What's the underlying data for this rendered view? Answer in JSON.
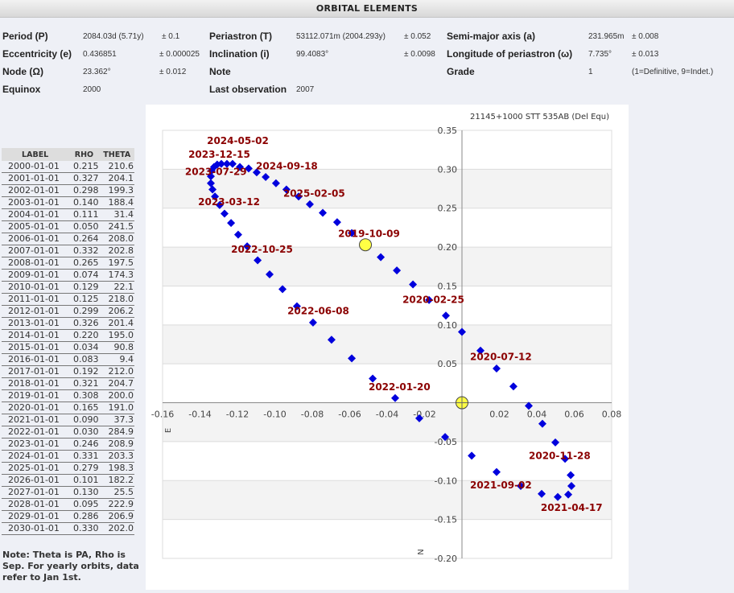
{
  "header": {
    "title": "ORBITAL ELEMENTS"
  },
  "elements": {
    "period": {
      "label": "Period (P)",
      "value": "2084.03d (5.71y)",
      "err": "± 0.1"
    },
    "periastron": {
      "label": "Periastron (T)",
      "value": "53112.071m (2004.293y)",
      "err": "± 0.052"
    },
    "semimajor": {
      "label": "Semi-major axis (a)",
      "value": "231.965m",
      "err": "± 0.008"
    },
    "eccentricity": {
      "label": "Eccentricity (e)",
      "value": "0.436851",
      "err": "± 0.000025"
    },
    "inclination": {
      "label": "Inclination (i)",
      "value": "99.4083°",
      "err": "± 0.0098"
    },
    "longitude": {
      "label": "Longitude of periastron (ω)",
      "value": "7.735°",
      "err": "± 0.013"
    },
    "node": {
      "label": "Node (Ω)",
      "value": "23.362°",
      "err": "± 0.012"
    },
    "note": {
      "label": "Note",
      "value": ""
    },
    "grade": {
      "label": "Grade",
      "value": "1",
      "err": "(1=Definitive, 9=Indet.)"
    },
    "equinox": {
      "label": "Equinox",
      "value": "2000"
    },
    "last_obs": {
      "label": "Last observation",
      "value": "2007"
    }
  },
  "ephemeris": {
    "headers": [
      "LABEL",
      "RHO",
      "THETA"
    ],
    "rows": [
      [
        "2000-01-01",
        "0.215",
        "210.6"
      ],
      [
        "2001-01-01",
        "0.327",
        "204.1"
      ],
      [
        "2002-01-01",
        "0.298",
        "199.3"
      ],
      [
        "2003-01-01",
        "0.140",
        "188.4"
      ],
      [
        "2004-01-01",
        "0.111",
        "31.4"
      ],
      [
        "2005-01-01",
        "0.050",
        "241.5"
      ],
      [
        "2006-01-01",
        "0.264",
        "208.0"
      ],
      [
        "2007-01-01",
        "0.332",
        "202.8"
      ],
      [
        "2008-01-01",
        "0.265",
        "197.5"
      ],
      [
        "2009-01-01",
        "0.074",
        "174.3"
      ],
      [
        "2010-01-01",
        "0.129",
        "22.1"
      ],
      [
        "2011-01-01",
        "0.125",
        "218.0"
      ],
      [
        "2012-01-01",
        "0.299",
        "206.2"
      ],
      [
        "2013-01-01",
        "0.326",
        "201.4"
      ],
      [
        "2014-01-01",
        "0.220",
        "195.0"
      ],
      [
        "2015-01-01",
        "0.034",
        "90.8"
      ],
      [
        "2016-01-01",
        "0.083",
        "9.4"
      ],
      [
        "2017-01-01",
        "0.192",
        "212.0"
      ],
      [
        "2018-01-01",
        "0.321",
        "204.7"
      ],
      [
        "2019-01-01",
        "0.308",
        "200.0"
      ],
      [
        "2020-01-01",
        "0.165",
        "191.0"
      ],
      [
        "2021-01-01",
        "0.090",
        "37.3"
      ],
      [
        "2022-01-01",
        "0.030",
        "284.9"
      ],
      [
        "2023-01-01",
        "0.246",
        "208.9"
      ],
      [
        "2024-01-01",
        "0.331",
        "203.3"
      ],
      [
        "2025-01-01",
        "0.279",
        "198.3"
      ],
      [
        "2026-01-01",
        "0.101",
        "182.2"
      ],
      [
        "2027-01-01",
        "0.130",
        "25.5"
      ],
      [
        "2028-01-01",
        "0.095",
        "222.9"
      ],
      [
        "2029-01-01",
        "0.286",
        "206.9"
      ],
      [
        "2030-01-01",
        "0.330",
        "202.0"
      ]
    ],
    "note": "Note: Theta is PA, Rho is Sep. For yearly orbits, data refer to Jan 1st."
  },
  "chart_data": {
    "type": "scatter",
    "title": "21145+1000 STT 535AB (Del Equ)",
    "xlim": [
      -0.16,
      0.08
    ],
    "ylim": [
      -0.2,
      0.35
    ],
    "xticks": [
      "-0.16",
      "-0.14",
      "-0.12",
      "-0.10",
      "-0.08",
      "-0.06",
      "-0.04",
      "-0.02",
      "0.02",
      "0.04",
      "0.06",
      "0.08"
    ],
    "xtick_values": [
      -0.16,
      -0.14,
      -0.12,
      -0.1,
      -0.08,
      -0.06,
      -0.04,
      -0.02,
      0.02,
      0.04,
      0.06,
      0.08
    ],
    "yticks": [
      "0.35",
      "0.30",
      "0.25",
      "0.20",
      "0.15",
      "0.10",
      "0.05",
      "-0.05",
      "-0.10",
      "-0.15",
      "-0.20"
    ],
    "ytick_values": [
      0.35,
      0.3,
      0.25,
      0.2,
      0.15,
      0.1,
      0.05,
      -0.05,
      -0.1,
      -0.15,
      -0.2
    ],
    "xlabel": "E",
    "ylabel": "N",
    "grid": true,
    "colors": {
      "point": "#0000dd",
      "label": "#8b0000",
      "marker": "#ffff44",
      "band": "#f3f3f3"
    },
    "orbit_points": [
      [
        0.0,
        0.091
      ],
      [
        0.0099,
        0.067
      ],
      [
        0.0185,
        0.044
      ],
      [
        0.0275,
        0.021
      ],
      [
        0.0357,
        -0.004
      ],
      [
        0.043,
        -0.027
      ],
      [
        0.0499,
        -0.051
      ],
      [
        0.0551,
        -0.072
      ],
      [
        0.0581,
        -0.093
      ],
      [
        0.0585,
        -0.107
      ],
      [
        0.0568,
        -0.118
      ],
      [
        0.0512,
        -0.121
      ],
      [
        0.0426,
        -0.117
      ],
      [
        0.0314,
        -0.107
      ],
      [
        0.0185,
        -0.089
      ],
      [
        0.0052,
        -0.068
      ],
      [
        -0.009,
        -0.044
      ],
      [
        -0.0228,
        -0.02
      ],
      [
        -0.0357,
        0.006
      ],
      [
        -0.0477,
        0.031
      ],
      [
        -0.0589,
        0.057
      ],
      [
        -0.0697,
        0.081
      ],
      [
        -0.0796,
        0.103
      ],
      [
        -0.0882,
        0.124
      ],
      [
        -0.0959,
        0.146
      ],
      [
        -0.1028,
        0.165
      ],
      [
        -0.1092,
        0.183
      ],
      [
        -0.1148,
        0.201
      ],
      [
        -0.1196,
        0.216
      ],
      [
        -0.1234,
        0.231
      ],
      [
        -0.1269,
        0.243
      ],
      [
        -0.1295,
        0.254
      ],
      [
        -0.132,
        0.265
      ],
      [
        -0.1333,
        0.274
      ],
      [
        -0.1342,
        0.282
      ],
      [
        -0.1342,
        0.291
      ],
      [
        -0.1338,
        0.298
      ],
      [
        -0.1325,
        0.303
      ],
      [
        -0.1308,
        0.306
      ],
      [
        -0.1286,
        0.307
      ],
      [
        -0.1256,
        0.307
      ],
      [
        -0.1226,
        0.307
      ],
      [
        -0.1187,
        0.303
      ],
      [
        -0.114,
        0.301
      ],
      [
        -0.1097,
        0.296
      ],
      [
        -0.1049,
        0.29
      ],
      [
        -0.0994,
        0.282
      ],
      [
        -0.0938,
        0.274
      ],
      [
        -0.0873,
        0.265
      ],
      [
        -0.0813,
        0.255
      ],
      [
        -0.0744,
        0.244
      ],
      [
        -0.0667,
        0.232
      ],
      [
        -0.0589,
        0.218
      ],
      [
        -0.0434,
        0.187
      ],
      [
        -0.0348,
        0.17
      ],
      [
        -0.0262,
        0.152
      ],
      [
        -0.0176,
        0.132
      ],
      [
        -0.0086,
        0.112
      ]
    ],
    "markers": [
      [
        0,
        0
      ],
      [
        -0.0516,
        0.203
      ]
    ],
    "annotations": [
      {
        "text": "2023-12-15",
        "x": -0.1462,
        "y": 0.318
      },
      {
        "text": "2024-05-02",
        "x": -0.1363,
        "y": 0.322
      },
      {
        "text": "2023-07-29",
        "x": -0.148,
        "y": 0.298
      },
      {
        "text": "2024-09-18",
        "x": -0.1187,
        "y": 0.305
      },
      {
        "text": "2023-03-12",
        "x": -0.141,
        "y": 0.259
      },
      {
        "text": "2025-02-05",
        "x": -0.0955,
        "y": 0.27
      },
      {
        "text": "2019-10-09",
        "x": -0.0662,
        "y": 0.218
      },
      {
        "text": "2022-10-25",
        "x": -0.1234,
        "y": 0.198
      },
      {
        "text": "2020-02-25",
        "x": -0.0318,
        "y": 0.148
      },
      {
        "text": "2022-06-08",
        "x": -0.0933,
        "y": 0.119
      },
      {
        "text": "2020-07-12",
        "x": 0.0043,
        "y": 0.06
      },
      {
        "text": "2022-01-20",
        "x": -0.0499,
        "y": 0.021
      },
      {
        "text": "2020-11-28",
        "x": 0.0357,
        "y": -0.067
      },
      {
        "text": "2021-09-02",
        "x": 0.0043,
        "y": -0.105
      },
      {
        "text": "2021-04-17",
        "x": 0.0421,
        "y": -0.134
      }
    ]
  }
}
